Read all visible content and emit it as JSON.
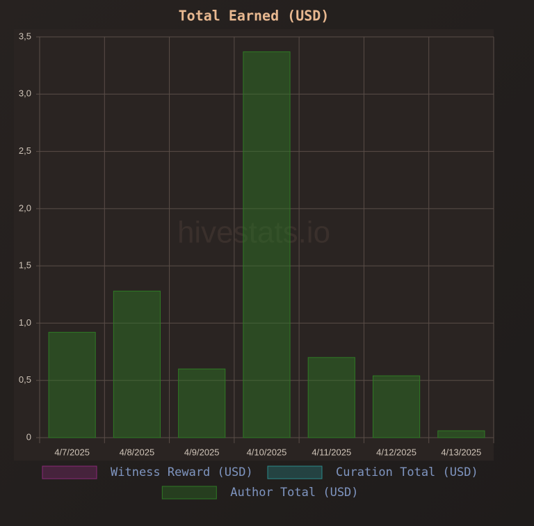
{
  "chart_data": {
    "type": "bar",
    "stacked": true,
    "title": "Total Earned (USD)",
    "watermark": "hivestats.io",
    "categories": [
      "4/7/2025",
      "4/8/2025",
      "4/9/2025",
      "4/10/2025",
      "4/11/2025",
      "4/12/2025",
      "4/13/2025"
    ],
    "series": [
      {
        "name": "Witness Reward (USD)",
        "color": "#8a2a78",
        "values": [
          0,
          0,
          0,
          0,
          0,
          0,
          0
        ]
      },
      {
        "name": "Curation Total (USD)",
        "color": "#2a8a8a",
        "values": [
          0,
          0,
          0,
          0,
          0,
          0,
          0
        ]
      },
      {
        "name": "Author Total (USD)",
        "color": "#2f7a25",
        "values": [
          0.92,
          1.28,
          0.6,
          3.37,
          0.7,
          0.54,
          0.06
        ]
      }
    ],
    "ylim": [
      0,
      3.5
    ],
    "yticks": [
      0,
      {
        "value": 0.5,
        "label": "0,5"
      },
      {
        "value": 1,
        "label": "1,0"
      },
      {
        "value": 1.5,
        "label": "1,5"
      },
      {
        "value": 2,
        "label": "2,0"
      },
      {
        "value": 2.5,
        "label": "2,5"
      },
      {
        "value": 3,
        "label": "3,0"
      },
      {
        "value": 3.5,
        "label": "3,5"
      }
    ],
    "grid": true
  }
}
